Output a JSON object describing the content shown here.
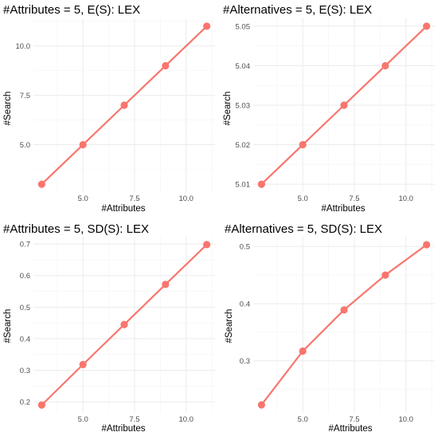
{
  "colors": {
    "series": "#F8766D",
    "grid_major": "#EBEBEB",
    "grid_minor": "#F5F5F5",
    "tick_text": "#4D4D4D"
  },
  "chart_data": [
    {
      "type": "line",
      "title": "#Attributes = 5, E(S): LEX",
      "xlabel": "#Attributes",
      "ylabel": "#Search",
      "x": [
        3,
        5,
        7,
        9,
        11
      ],
      "series": [
        {
          "values": [
            3,
            5,
            7,
            9,
            11
          ]
        }
      ],
      "xlim": [
        2.6,
        11.4
      ],
      "ylim": [
        2.6,
        11.4
      ],
      "xticks": [
        5,
        7.5,
        10
      ],
      "xtick_labels": [
        "5.0",
        "7.5",
        "10.0"
      ],
      "yticks": [
        5,
        7.5,
        10
      ],
      "ytick_labels": [
        "5.0",
        "7.5",
        "10.0"
      ],
      "grid": true
    },
    {
      "type": "line",
      "title": "#Alternatives = 5, E(S): LEX",
      "xlabel": "#Attributes",
      "ylabel": "#Search",
      "x": [
        3,
        5,
        7,
        9,
        11
      ],
      "series": [
        {
          "values": [
            5.01,
            5.02,
            5.03,
            5.04,
            5.05
          ]
        }
      ],
      "xlim": [
        2.6,
        11.4
      ],
      "ylim": [
        5.008,
        5.052
      ],
      "xticks": [
        5,
        7.5,
        10
      ],
      "xtick_labels": [
        "5.0",
        "7.5",
        "10.0"
      ],
      "yticks": [
        5.01,
        5.02,
        5.03,
        5.04,
        5.05
      ],
      "ytick_labels": [
        "5.01",
        "5.02",
        "5.03",
        "5.04",
        "5.05"
      ],
      "grid": true
    },
    {
      "type": "line",
      "title": "#Attributes = 5, SD(S): LEX",
      "xlabel": "#Attributes",
      "ylabel": "#Search",
      "x": [
        3,
        5,
        7,
        9,
        11
      ],
      "series": [
        {
          "values": [
            0.19,
            0.318,
            0.445,
            0.572,
            0.698
          ]
        }
      ],
      "xlim": [
        2.6,
        11.4
      ],
      "ylim": [
        0.165,
        0.723
      ],
      "xticks": [
        5,
        7.5,
        10
      ],
      "xtick_labels": [
        "5.0",
        "7.5",
        "10.0"
      ],
      "yticks": [
        0.2,
        0.3,
        0.4,
        0.5,
        0.6,
        0.7
      ],
      "ytick_labels": [
        "0.2",
        "0.3",
        "0.4",
        "0.5",
        "0.6",
        "0.7"
      ],
      "grid": true
    },
    {
      "type": "line",
      "title": "#Alternatives = 5, SD(S): LEX",
      "xlabel": "#Attributes",
      "ylabel": "#Search",
      "x": [
        3,
        5,
        7,
        9,
        11
      ],
      "series": [
        {
          "values": [
            0.223,
            0.317,
            0.389,
            0.45,
            0.503
          ]
        }
      ],
      "xlim": [
        2.6,
        11.4
      ],
      "ylim": [
        0.209,
        0.517
      ],
      "xticks": [
        5,
        7.5,
        10
      ],
      "xtick_labels": [
        "5.0",
        "7.5",
        "10.0"
      ],
      "yticks": [
        0.3,
        0.4,
        0.5
      ],
      "ytick_labels": [
        "0.3",
        "0.4",
        "0.5"
      ],
      "grid": true
    }
  ]
}
